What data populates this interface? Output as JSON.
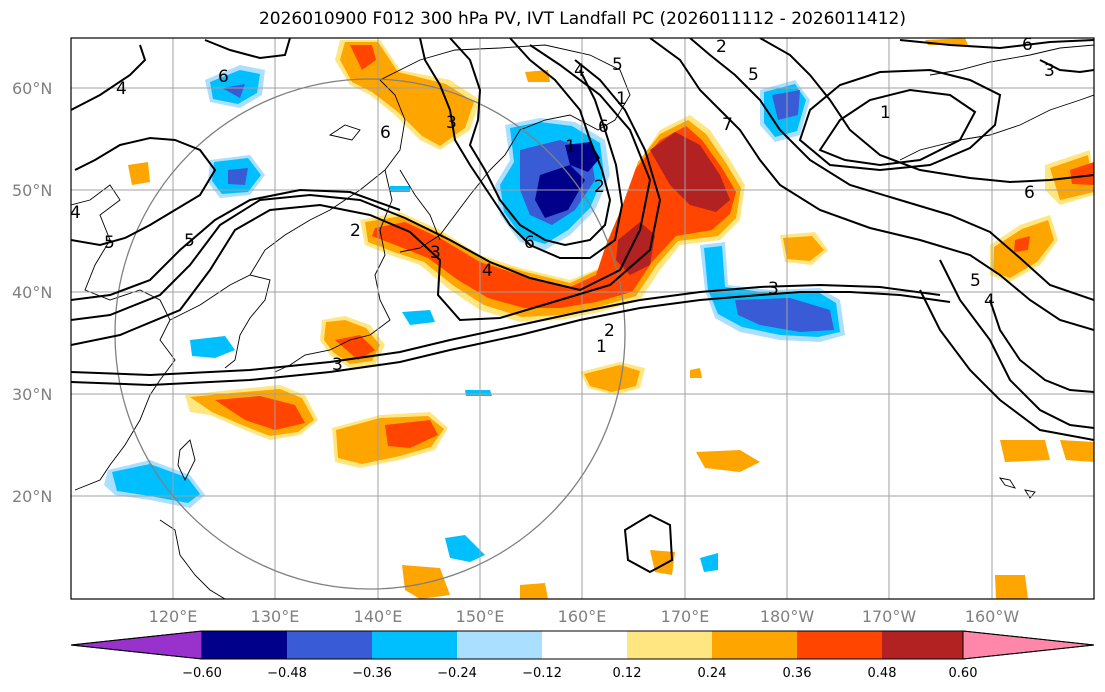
{
  "title": "2026010900 F012 300 hPa PV, IVT Landfall PC (2026011112 - 2026011412)",
  "map": {
    "lat_labels": [
      "60°N",
      "50°N",
      "40°N",
      "30°N",
      "20°N"
    ],
    "lon_labels": [
      "120°E",
      "130°E",
      "140°E",
      "150°E",
      "160°E",
      "170°E",
      "180°W",
      "170°W",
      "160°W"
    ],
    "contour_labels": [
      "4",
      "6",
      "3",
      "6",
      "4",
      "5",
      "2",
      "1",
      "5",
      "6",
      "3",
      "2",
      "4",
      "3",
      "4",
      "6",
      "5",
      "7",
      "6",
      "2",
      "1",
      "5",
      "6",
      "3",
      "4",
      "5",
      "1",
      "2",
      "3",
      "1"
    ]
  },
  "colorbar": {
    "ticks": [
      "−0.60",
      "−0.48",
      "−0.36",
      "−0.24",
      "−0.12",
      "0.12",
      "0.24",
      "0.36",
      "0.48",
      "0.60"
    ],
    "colors": [
      "#9932cc",
      "#00008b",
      "#3a5bd6",
      "#00bfff",
      "#aadfff",
      "#ffffff",
      "#ffe680",
      "#ffa500",
      "#ff4500",
      "#b22222",
      "#ff88aa"
    ]
  }
}
